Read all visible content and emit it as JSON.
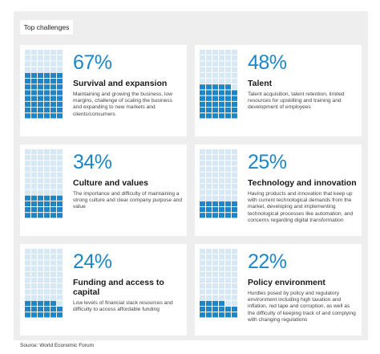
{
  "header": {
    "title": "Top challenges"
  },
  "cards": [
    {
      "value": 67,
      "value_label": "67%",
      "title": "Survival and expansion",
      "description": "Maintaining and growing the business, low margins, challenge of scaling the business and expanding to new markets and clients/consumers"
    },
    {
      "value": 48,
      "value_label": "48%",
      "title": "Talent",
      "description": "Talent acquisition, talent retention, limited resources for upskilling and training and development of employees"
    },
    {
      "value": 34,
      "value_label": "34%",
      "title": "Culture and values",
      "description": "The importance and difficulty of maintaining a strong culture and clear company purpose and value"
    },
    {
      "value": 25,
      "value_label": "25%",
      "title": "Technology and innovation",
      "description": "Having products and innovation that keep up with current technological demands from the market, developing and implementing technological processes like automation, and concerns regarding digital transformation"
    },
    {
      "value": 24,
      "value_label": "24%",
      "title": "Funding and access to capital",
      "description": "Low levels of financial slack resources and difficulty to access affordable funding"
    },
    {
      "value": 22,
      "value_label": "22%",
      "title": "Policy environment",
      "description": "Hurdles posed by policy and regulatory environment including high taxation and inflation, red tape and corruption, as well as the difficulty of keeping track of and complying with changing regulations"
    }
  ],
  "source": "Source: World Economic Forum"
}
